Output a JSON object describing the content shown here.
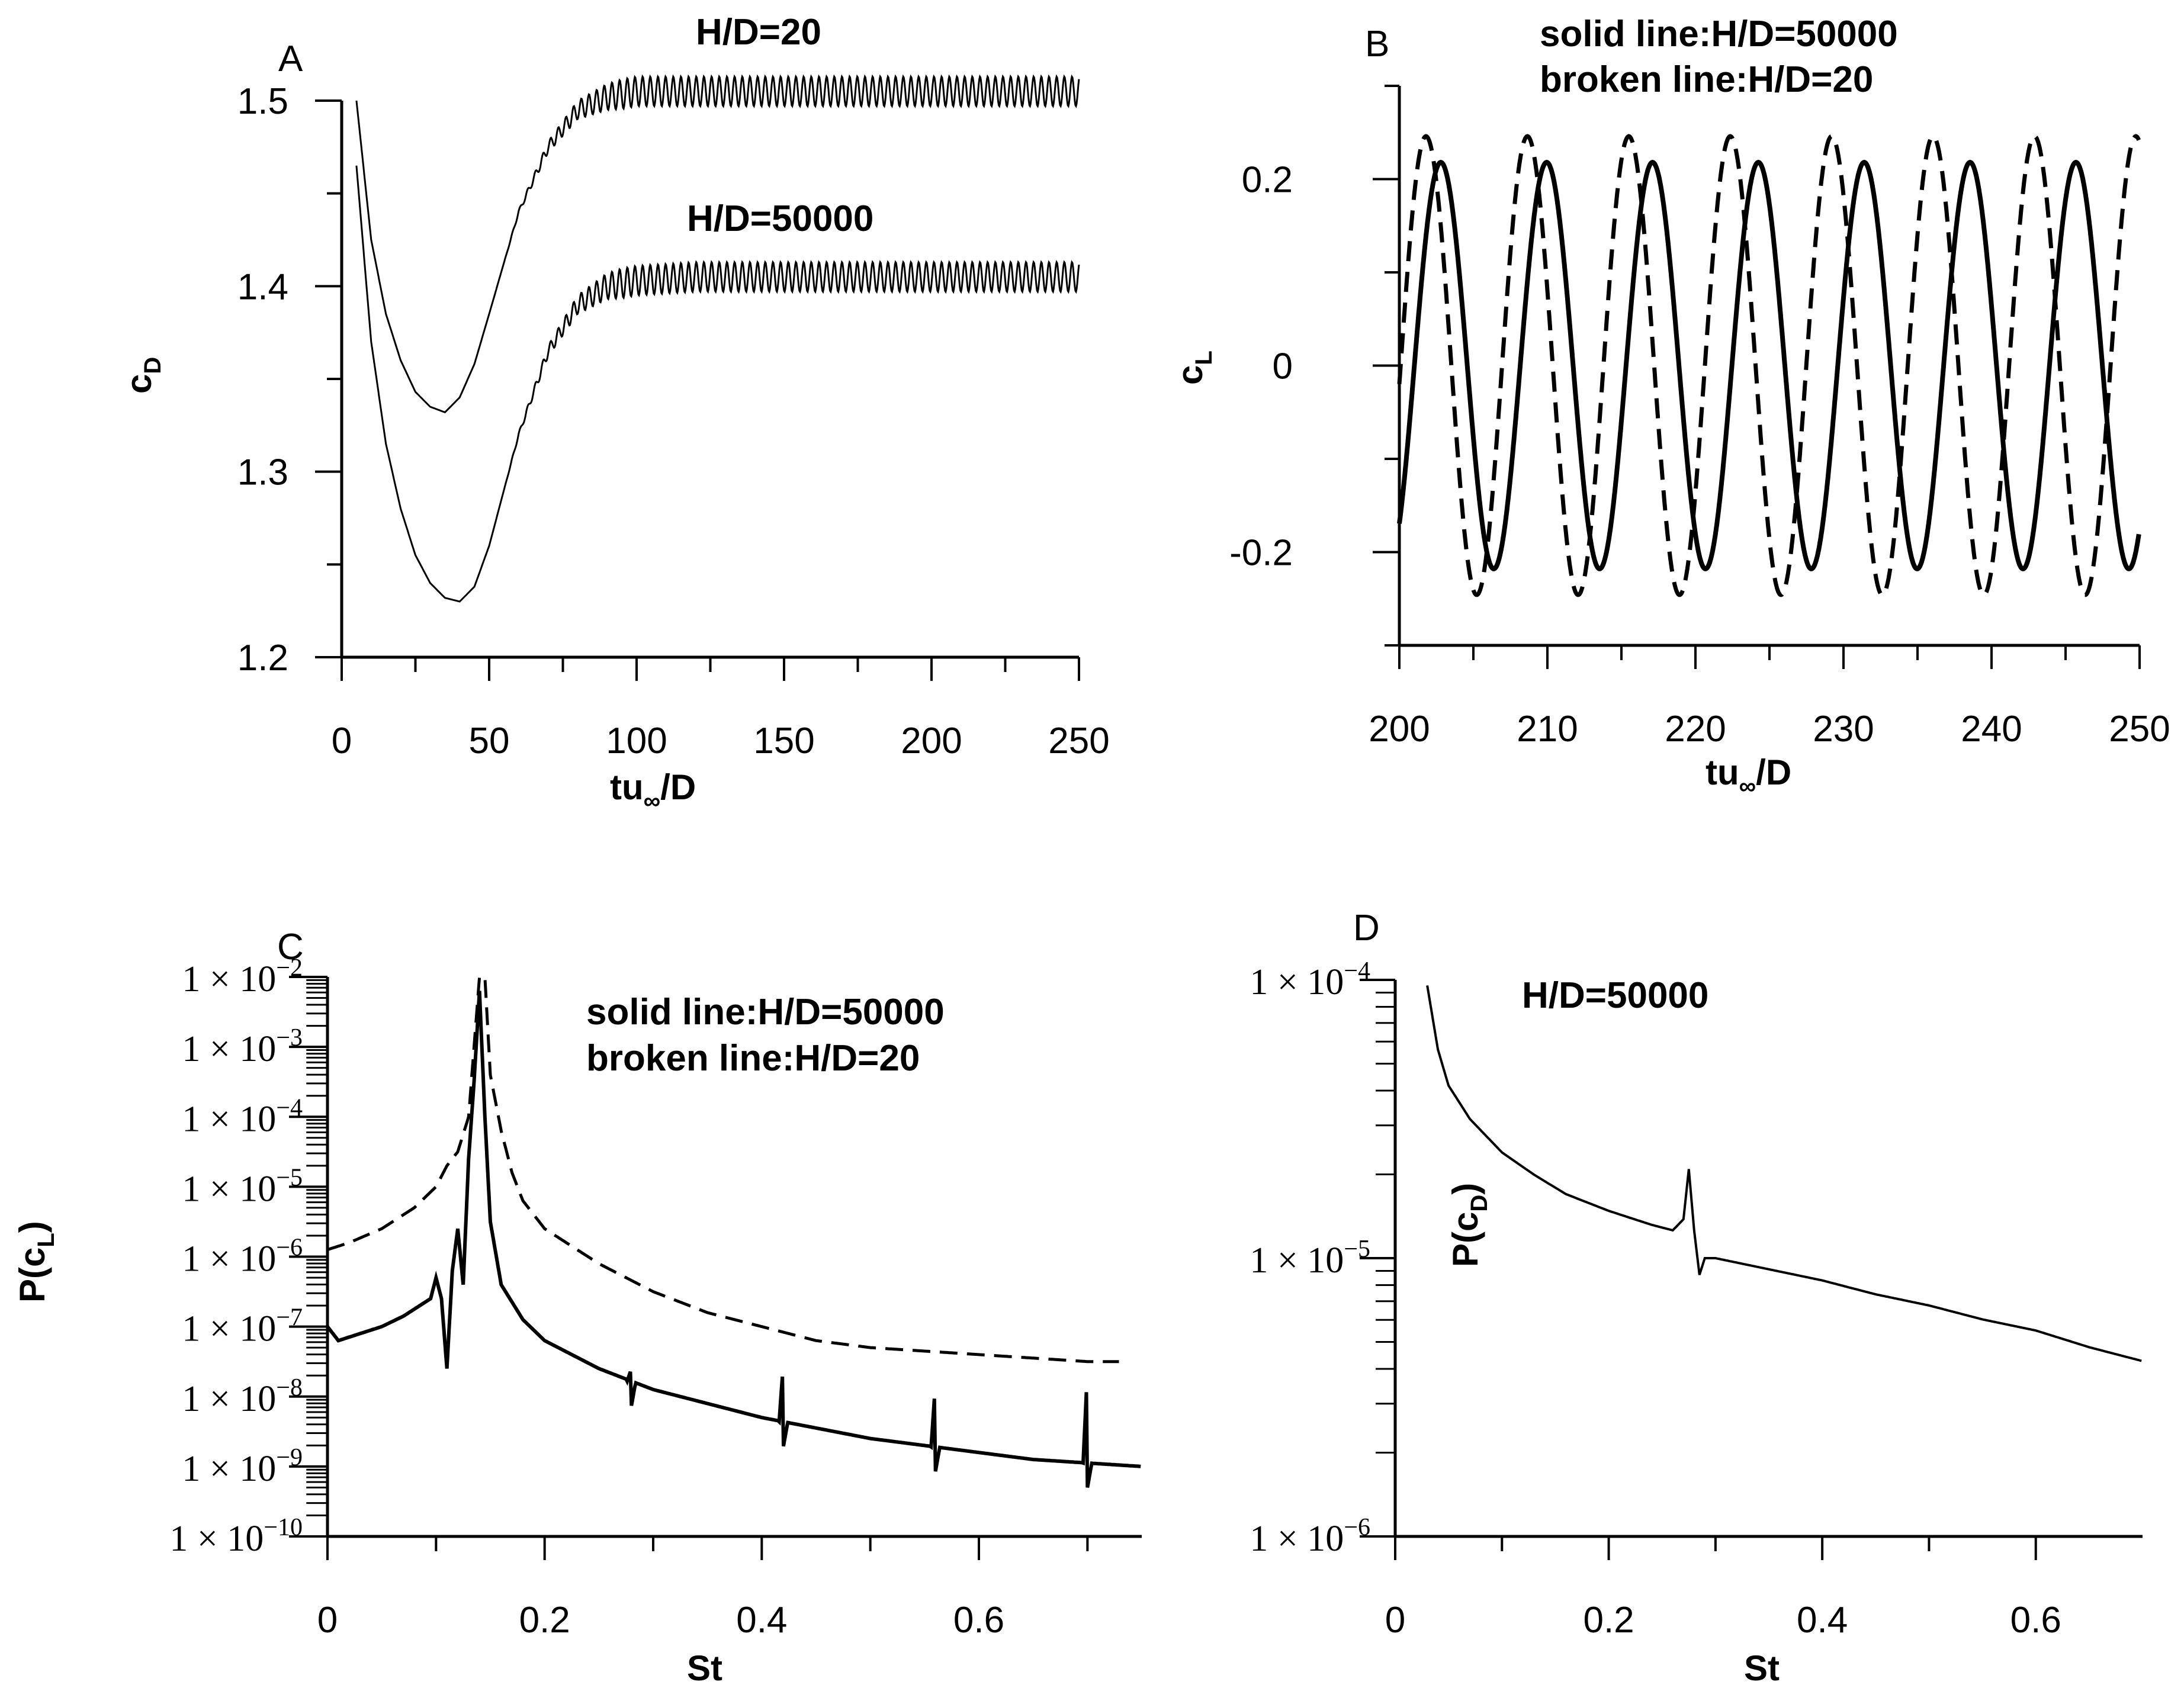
{
  "chart_data": [
    {
      "panel": "A",
      "type": "line",
      "xlabel": "tu",
      "xlabel_sub": "∞",
      "xlabel_suffix": "/D",
      "ylabel": "c",
      "ylabel_sub": "D",
      "xlim": [
        0,
        250
      ],
      "ylim": [
        1.2,
        1.5
      ],
      "xticks": [
        "0",
        "50",
        "100",
        "150",
        "200",
        "250"
      ],
      "yticks": [
        "1.2",
        "1.3",
        "1.4",
        "1.5"
      ],
      "annotations": [
        "H/D=20",
        "H/D=50000"
      ],
      "series": [
        {
          "name": "H/D=20",
          "style": "solid",
          "x": [
            5,
            10,
            15,
            20,
            25,
            30,
            35,
            40,
            45,
            50,
            60,
            70,
            80,
            90,
            100,
            120,
            150,
            200,
            250
          ],
          "y": [
            1.5,
            1.425,
            1.385,
            1.36,
            1.343,
            1.335,
            1.332,
            1.34,
            1.358,
            1.385,
            1.44,
            1.475,
            1.495,
            1.502,
            1.505,
            1.505,
            1.505,
            1.505,
            1.505
          ],
          "oscillation_amplitude": 0.008
        },
        {
          "name": "H/D=50000",
          "style": "solid",
          "x": [
            5,
            10,
            15,
            20,
            25,
            30,
            35,
            40,
            45,
            50,
            60,
            70,
            80,
            90,
            100,
            120,
            150,
            200,
            250
          ],
          "y": [
            1.465,
            1.37,
            1.315,
            1.28,
            1.255,
            1.24,
            1.232,
            1.23,
            1.238,
            1.26,
            1.32,
            1.365,
            1.39,
            1.4,
            1.403,
            1.405,
            1.405,
            1.405,
            1.405
          ],
          "oscillation_amplitude": 0.008
        }
      ]
    },
    {
      "panel": "B",
      "type": "line",
      "xlabel": "tu",
      "xlabel_sub": "∞",
      "xlabel_suffix": "/D",
      "ylabel": "c",
      "ylabel_sub": "L",
      "xlim": [
        200,
        250
      ],
      "ylim": [
        -0.3,
        0.3
      ],
      "xticks": [
        "200",
        "210",
        "220",
        "230",
        "240",
        "250"
      ],
      "yticks": [
        "-0.2",
        "0",
        "0.2"
      ],
      "annotations": [
        "solid line:H/D=50000",
        "broken line:H/D=20"
      ],
      "series": [
        {
          "name": "H/D=50000",
          "style": "solid",
          "amplitude": 0.218,
          "period": 7.15,
          "phase_peak_at": 202.8
        },
        {
          "name": "H/D=20",
          "style": "dashed",
          "amplitude": 0.246,
          "period": 6.85,
          "phase_peak_at": 201.8
        }
      ]
    },
    {
      "panel": "C",
      "type": "line",
      "yscale": "log",
      "xlabel": "St",
      "ylabel": "P(c",
      "ylabel_sub": "L",
      "ylabel_suffix": ")",
      "xlim": [
        0,
        0.75
      ],
      "ylim_exp": [
        -10,
        -2
      ],
      "xticks": [
        "0",
        "0.2",
        "0.4",
        "0.6"
      ],
      "ytick_mantissa": "1 × 10",
      "ytick_exponents": [
        "−2",
        "−3",
        "−4",
        "−5",
        "−6",
        "−7",
        "−8",
        "−9",
        "−10"
      ],
      "annotations": [
        "solid line:H/D=50000",
        "broken line:H/D=20"
      ],
      "series": [
        {
          "name": "H/D=50000",
          "style": "solid",
          "x": [
            0,
            0.01,
            0.03,
            0.05,
            0.07,
            0.085,
            0.095,
            0.1,
            0.105,
            0.11,
            0.115,
            0.12,
            0.125,
            0.13,
            0.135,
            0.14,
            0.145,
            0.15,
            0.16,
            0.18,
            0.2,
            0.25,
            0.3,
            0.35,
            0.4,
            0.45,
            0.5,
            0.55,
            0.6,
            0.65,
            0.7,
            0.75
          ],
          "logy": [
            -7.0,
            -7.2,
            -7.1,
            -7.0,
            -6.85,
            -6.7,
            -6.6,
            -6.3,
            -6.6,
            -7.6,
            -6.2,
            -5.6,
            -6.4,
            -4.6,
            -3.5,
            -2.2,
            -4.0,
            -5.5,
            -6.4,
            -6.9,
            -7.2,
            -7.6,
            -7.9,
            -8.1,
            -8.3,
            -8.45,
            -8.6,
            -8.7,
            -8.8,
            -8.9,
            -8.95,
            -9.0
          ],
          "spikes": [
            {
              "x": 0.28,
              "logy": -7.6
            },
            {
              "x": 0.42,
              "logy": -7.5
            },
            {
              "x": 0.56,
              "logy": -7.8
            },
            {
              "x": 0.7,
              "logy": -7.6
            }
          ]
        },
        {
          "name": "H/D=20",
          "style": "dashed",
          "x": [
            0,
            0.02,
            0.05,
            0.08,
            0.1,
            0.11,
            0.12,
            0.13,
            0.14,
            0.145,
            0.15,
            0.16,
            0.17,
            0.18,
            0.2,
            0.25,
            0.3,
            0.35,
            0.4,
            0.45,
            0.5,
            0.55,
            0.6,
            0.65,
            0.7,
            0.73
          ],
          "logy": [
            -5.9,
            -5.8,
            -5.6,
            -5.3,
            -5.0,
            -4.7,
            -4.5,
            -4.0,
            -2.0,
            -2.0,
            -3.4,
            -4.2,
            -4.8,
            -5.2,
            -5.6,
            -6.1,
            -6.5,
            -6.8,
            -7.0,
            -7.2,
            -7.3,
            -7.35,
            -7.4,
            -7.45,
            -7.5,
            -7.5
          ]
        }
      ]
    },
    {
      "panel": "D",
      "type": "line",
      "yscale": "log",
      "xlabel": "St",
      "ylabel": "P(c",
      "ylabel_sub": "D",
      "ylabel_suffix": ")",
      "xlim": [
        0,
        0.7
      ],
      "ylim_exp": [
        -6,
        -4
      ],
      "xticks": [
        "0",
        "0.2",
        "0.4",
        "0.6"
      ],
      "ytick_mantissa": "1 × 10",
      "ytick_exponents": [
        "−4",
        "−5",
        "−6"
      ],
      "annotations": [
        "H/D=50000"
      ],
      "series": [
        {
          "name": "H/D=50000",
          "style": "solid",
          "x": [
            0.03,
            0.04,
            0.05,
            0.07,
            0.1,
            0.13,
            0.16,
            0.2,
            0.24,
            0.26,
            0.27,
            0.275,
            0.28,
            0.285,
            0.29,
            0.3,
            0.35,
            0.4,
            0.45,
            0.5,
            0.55,
            0.6,
            0.65,
            0.7
          ],
          "logy": [
            -4.02,
            -4.25,
            -4.38,
            -4.5,
            -4.62,
            -4.7,
            -4.77,
            -4.83,
            -4.88,
            -4.9,
            -4.86,
            -4.68,
            -4.9,
            -5.06,
            -5.0,
            -5.0,
            -5.04,
            -5.08,
            -5.13,
            -5.17,
            -5.22,
            -5.26,
            -5.32,
            -5.37
          ]
        }
      ]
    }
  ]
}
